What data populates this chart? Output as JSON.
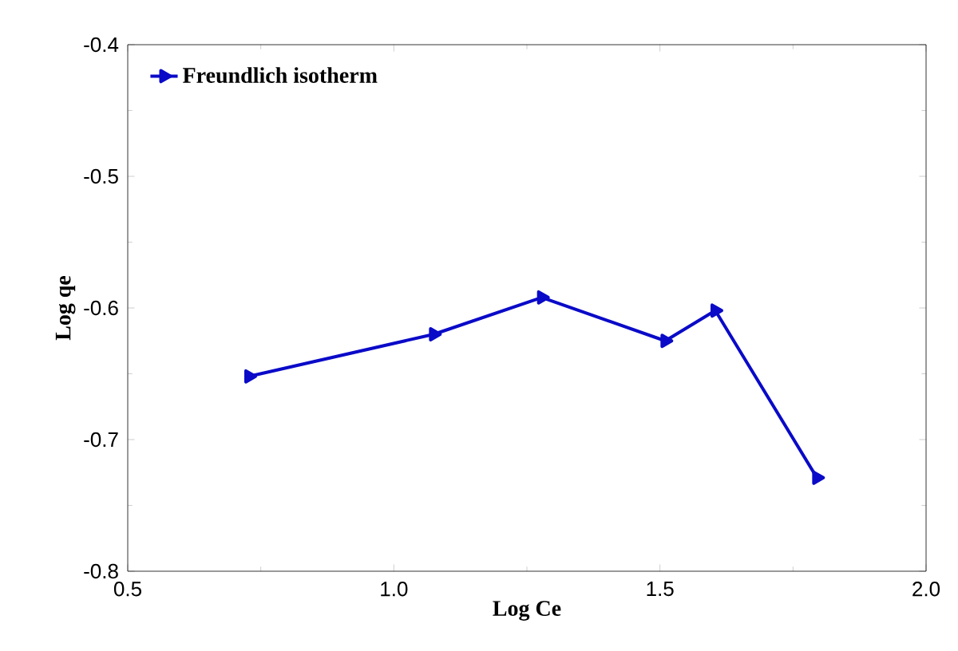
{
  "chart_data": {
    "type": "line",
    "xlabel": "Log Ce",
    "ylabel": "Log qe",
    "x": [
      0.728,
      1.075,
      1.278,
      1.51,
      1.604,
      1.795
    ],
    "series": [
      {
        "name": "Freundlich isotherm",
        "color": "#0a0ac8",
        "values": [
          -0.652,
          -0.62,
          -0.592,
          -0.625,
          -0.602,
          -0.729
        ]
      }
    ],
    "xlim": [
      0.5,
      2.0
    ],
    "ylim": [
      -0.8,
      -0.4
    ],
    "xticks": [
      {
        "value": 0.5,
        "label": "0.5"
      },
      {
        "value": 1.0,
        "label": "1.0"
      },
      {
        "value": 1.5,
        "label": "1.5"
      },
      {
        "value": 2.0,
        "label": "2.0"
      }
    ],
    "yticks": [
      {
        "value": -0.8,
        "label": "-0.8"
      },
      {
        "value": -0.7,
        "label": "-0.7"
      },
      {
        "value": -0.6,
        "label": "-0.6"
      },
      {
        "value": -0.5,
        "label": "-0.5"
      },
      {
        "value": -0.4,
        "label": "-0.4"
      }
    ],
    "legend": "top left",
    "marker": "triangle",
    "line_style": "solid",
    "grid": false
  }
}
